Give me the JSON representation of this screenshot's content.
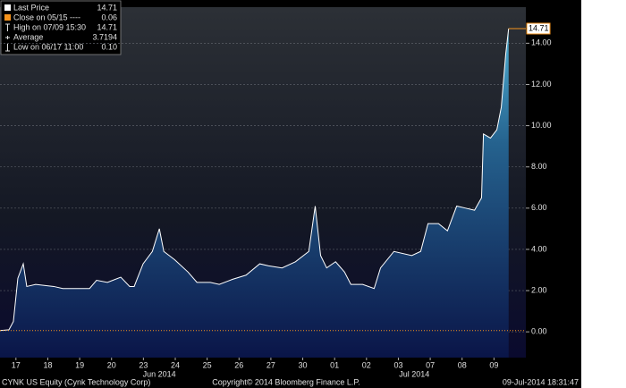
{
  "chart_data": {
    "type": "area",
    "xlim": [
      0,
      16.5
    ],
    "xticks": [
      {
        "value": 0.5,
        "label": "17"
      },
      {
        "value": 1.5,
        "label": "18"
      },
      {
        "value": 2.5,
        "label": "19"
      },
      {
        "value": 3.5,
        "label": "20"
      },
      {
        "value": 4.5,
        "label": "23"
      },
      {
        "value": 5.5,
        "label": "24"
      },
      {
        "value": 6.5,
        "label": "25"
      },
      {
        "value": 7.5,
        "label": "26"
      },
      {
        "value": 8.5,
        "label": "27"
      },
      {
        "value": 9.5,
        "label": "30"
      },
      {
        "value": 10.5,
        "label": "01"
      },
      {
        "value": 11.5,
        "label": "02"
      },
      {
        "value": 12.5,
        "label": "03"
      },
      {
        "value": 13.5,
        "label": "07"
      },
      {
        "value": 14.5,
        "label": "08"
      },
      {
        "value": 15.5,
        "label": "09"
      }
    ],
    "month_labels": [
      {
        "value": 5.0,
        "label": "Jun 2014"
      },
      {
        "value": 13.0,
        "label": "Jul 2014"
      }
    ],
    "ylim": [
      -1.25,
      15.75
    ],
    "yticks": [
      {
        "value": 0,
        "label": "0.00"
      },
      {
        "value": 2,
        "label": "2.00"
      },
      {
        "value": 4,
        "label": "4.00"
      },
      {
        "value": 6,
        "label": "6.00"
      },
      {
        "value": 8,
        "label": "8.00"
      },
      {
        "value": 10,
        "label": "10.00"
      },
      {
        "value": 12,
        "label": "12.00"
      },
      {
        "value": 14,
        "label": "14.00"
      }
    ],
    "grid": true,
    "close_line": 0.06,
    "close_color": "#f7941d",
    "series": [
      {
        "name": "Last Price",
        "color": "#ffffff",
        "x": [
          0,
          0.28,
          0.42,
          0.56,
          0.73,
          0.84,
          1.12,
          1.69,
          1.97,
          2.81,
          3.03,
          3.37,
          3.79,
          4.07,
          4.21,
          4.49,
          4.78,
          5.0,
          5.14,
          5.48,
          5.9,
          6.18,
          6.6,
          6.88,
          7.3,
          7.72,
          8.15,
          8.43,
          8.85,
          9.27,
          9.69,
          9.89,
          10.06,
          10.25,
          10.53,
          10.81,
          11.01,
          11.38,
          11.74,
          11.94,
          12.36,
          12.92,
          13.2,
          13.43,
          13.76,
          14.04,
          14.33,
          14.61,
          14.89,
          15.11,
          15.17,
          15.39,
          15.59,
          15.73,
          15.87,
          15.96
        ],
        "values": [
          0.06,
          0.1,
          0.5,
          2.6,
          3.3,
          2.2,
          2.3,
          2.2,
          2.1,
          2.1,
          2.5,
          2.4,
          2.65,
          2.2,
          2.2,
          3.3,
          3.9,
          5.0,
          3.9,
          3.5,
          2.9,
          2.4,
          2.4,
          2.3,
          2.55,
          2.75,
          3.3,
          3.2,
          3.1,
          3.4,
          3.9,
          6.1,
          3.7,
          3.1,
          3.4,
          2.9,
          2.3,
          2.3,
          2.1,
          3.1,
          3.9,
          3.7,
          3.9,
          5.25,
          5.25,
          4.9,
          6.1,
          6.0,
          5.9,
          6.5,
          9.6,
          9.4,
          9.8,
          10.9,
          13.5,
          14.71
        ]
      }
    ],
    "legend": [
      {
        "label": "Last Price",
        "value": "14.71"
      },
      {
        "label": "Close on 05/15 ----",
        "value": "0.06"
      },
      {
        "label": "High on 07/09 15:30",
        "value": "14.71"
      },
      {
        "label": "Average",
        "value": "3.7194"
      },
      {
        "label": "Low on 06/17 11:00",
        "value": "0.10"
      }
    ],
    "footer_left": "CYNK US Equity (Cynk Technology Corp)",
    "footer_center": "Copyright© 2014 Bloomberg Finance L.P.",
    "footer_right": "09-Jul-2014 18:31:47"
  }
}
